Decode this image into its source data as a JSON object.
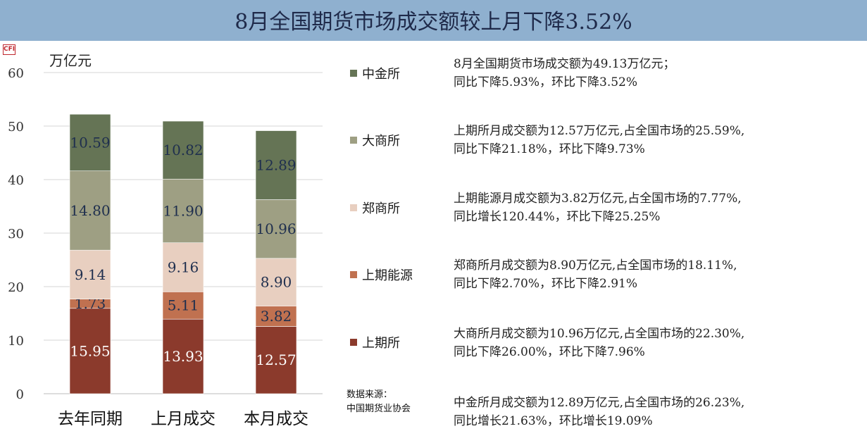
{
  "title": "8月全国期货市场成交额较上月下降3.52%",
  "logo_text": "CFI",
  "chart_data": {
    "type": "bar",
    "stacked": true,
    "ylabel": "万亿元",
    "ylim": [
      0,
      60
    ],
    "yticks": [
      "0",
      "10",
      "20",
      "30",
      "40",
      "50",
      "60"
    ],
    "categories": [
      "去年同期",
      "上月成交",
      "本月成交"
    ],
    "series": [
      {
        "name": "上期所",
        "color": "#8b3a2c",
        "values": [
          15.95,
          13.93,
          12.57
        ],
        "labels": [
          "15.95",
          "13.93",
          "12.57"
        ]
      },
      {
        "name": "上期能源",
        "color": "#c07150",
        "values": [
          1.73,
          5.11,
          3.82
        ],
        "labels": [
          "1.73",
          "5.11",
          "3.82"
        ]
      },
      {
        "name": "郑商所",
        "color": "#e8cfc0",
        "values": [
          9.14,
          9.16,
          8.9
        ],
        "labels": [
          "9.14",
          "9.16",
          "8.90"
        ]
      },
      {
        "name": "大商所",
        "color": "#9e9f83",
        "values": [
          14.8,
          11.9,
          10.96
        ],
        "labels": [
          "14.80",
          "11.90",
          "10.96"
        ]
      },
      {
        "name": "中金所",
        "color": "#657455",
        "values": [
          10.59,
          10.82,
          12.89
        ],
        "labels": [
          "10.59",
          "10.82",
          "12.89"
        ]
      }
    ],
    "legend_order": [
      "中金所",
      "大商所",
      "郑商所",
      "上期能源",
      "上期所"
    ]
  },
  "source": {
    "line1": "数据来源：",
    "line2": "中国期货业协会"
  },
  "notes": [
    {
      "line1": "8月全国期货市场成交额为49.13万亿元；",
      "line2": "同比下降5.93%，环比下降3.52%"
    },
    {
      "line1": "上期所月成交额为12.57万亿元,占全国市场的25.59%,",
      "line2": "同比下降21.18%，环比下降9.73%"
    },
    {
      "line1": "上期能源月成交额为3.82万亿元,占全国市场的7.77%,",
      "line2": "同比增长120.44%，环比下降25.25%"
    },
    {
      "line1": "郑商所月成交额为8.90万亿元,占全国市场的18.11%,",
      "line2": "同比下降2.70%，环比下降2.91%"
    },
    {
      "line1": "大商所月成交额为10.96万亿元,占全国市场的22.30%,",
      "line2": "同比下降26.00%，环比下降7.96%"
    },
    {
      "line1": "中金所月成交额为12.89万亿元,占全国市场的26.23%,",
      "line2": "同比增长21.63%，环比增长19.09%"
    }
  ]
}
